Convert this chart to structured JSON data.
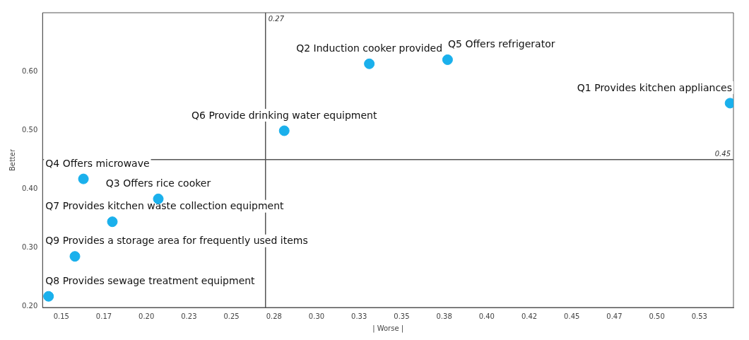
{
  "chart_data": {
    "type": "scatter",
    "xlabel": "| Worse |",
    "ylabel": "Better",
    "x": [
      0.543,
      0.331,
      0.207,
      0.163,
      0.377,
      0.281,
      0.18,
      0.1425,
      0.158
    ],
    "values": [
      0.546,
      0.613,
      0.383,
      0.417,
      0.62,
      0.499,
      0.344,
      0.217,
      0.285
    ],
    "value_labels": [
      "Q1 Provides kitchen appliances",
      "Q2 Induction cooker provided",
      "Q3 Offers rice cooker",
      "Q4 Offers microwave",
      "Q5 Offers refrigerator",
      "Q6 Provide drinking water equipment",
      "Q7 Provides kitchen waste collection equipment",
      "Q8 Provides sewage treatment equipment",
      "Q9 Provides a storage area for frequently used items"
    ],
    "color": "#1ab0ec",
    "marker": "circle",
    "grid": false,
    "legend": false,
    "xlim": [
      0.139,
      0.545
    ],
    "xticks": [
      0.15,
      {
        "value": 0.175,
        "label": "0.17"
      },
      {
        "value": 0.2,
        "label": "0.20"
      },
      {
        "value": 0.225,
        "label": "0.23"
      },
      {
        "value": 0.25,
        "label": "0.25"
      },
      {
        "value": 0.275,
        "label": "0.28"
      },
      {
        "value": 0.3,
        "label": "0.30"
      },
      {
        "value": 0.325,
        "label": "0.33"
      },
      {
        "value": 0.35,
        "label": "0.35"
      },
      {
        "value": 0.375,
        "label": "0.38"
      },
      {
        "value": 0.4,
        "label": "0.40"
      },
      {
        "value": 0.425,
        "label": "0.42"
      },
      {
        "value": 0.45,
        "label": "0.45"
      },
      {
        "value": 0.475,
        "label": "0.47"
      },
      {
        "value": 0.5,
        "label": "0.50"
      },
      {
        "value": 0.525,
        "label": "0.53"
      }
    ],
    "ylim": [
      0.198,
      0.7
    ],
    "yticks": [
      {
        "value": 0.2,
        "label": "0.20"
      },
      {
        "value": 0.3,
        "label": "0.30"
      },
      {
        "value": 0.4,
        "label": "0.40"
      },
      {
        "value": 0.5,
        "label": "0.50"
      },
      {
        "value": 0.6,
        "label": "0.60"
      }
    ],
    "ref_lines": [
      {
        "axis": "x",
        "value": 0.27,
        "label": "0.27",
        "color": "#555555"
      },
      {
        "axis": "y",
        "value": 0.45,
        "label": "0.45",
        "color": "#555555"
      }
    ]
  }
}
